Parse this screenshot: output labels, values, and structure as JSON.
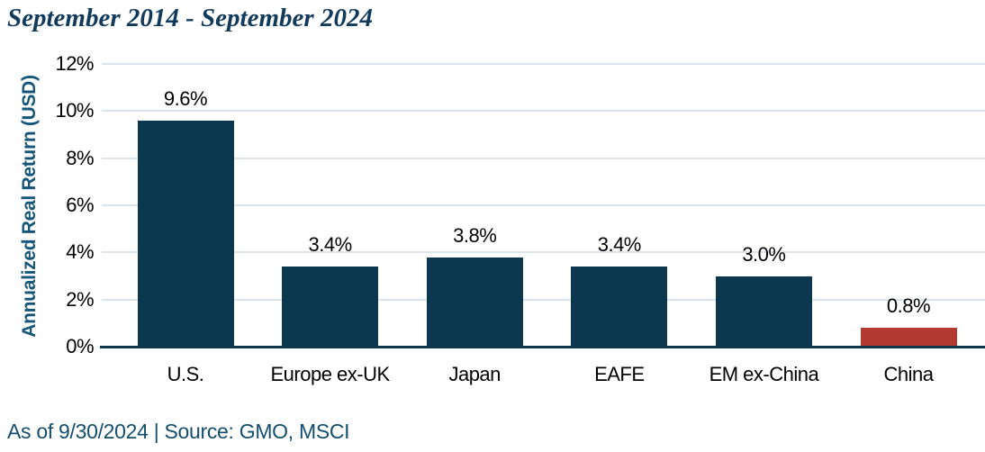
{
  "title": "September 2014 - September 2024",
  "footer": "As of 9/30/2024 | Source: GMO, MSCI",
  "colors": {
    "bar_navy": "#0B384F",
    "bar_red": "#B23A31",
    "gridline": "#D8E5EE",
    "axis_line": "#0B384F",
    "title_text": "#123A5B",
    "y_axis_label_text": "#16567A",
    "footer_text": "#134E6F",
    "tick_text": "#000000"
  },
  "chart_data": {
    "type": "bar",
    "title": "September 2014 - September 2024",
    "xlabel": "",
    "ylabel": "Annualized Real Return (USD)",
    "categories": [
      "U.S.",
      "Europe ex-UK",
      "Japan",
      "EAFE",
      "EM ex-China",
      "China"
    ],
    "values": [
      9.6,
      3.4,
      3.8,
      3.4,
      3.0,
      0.8
    ],
    "value_labels": [
      "9.6%",
      "3.4%",
      "3.8%",
      "3.4%",
      "3.0%",
      "0.8%"
    ],
    "bar_colors": [
      "#0B384F",
      "#0B384F",
      "#0B384F",
      "#0B384F",
      "#0B384F",
      "#B23A31"
    ],
    "ylim": [
      0,
      12
    ],
    "y_ticks": [
      0,
      2,
      4,
      6,
      8,
      10,
      12
    ],
    "y_tick_labels": [
      "0%",
      "2%",
      "4%",
      "6%",
      "8%",
      "10%",
      "12%"
    ],
    "grid": "horizontal",
    "legend": "none",
    "source_note": "As of 9/30/2024 | Source: GMO, MSCI"
  }
}
